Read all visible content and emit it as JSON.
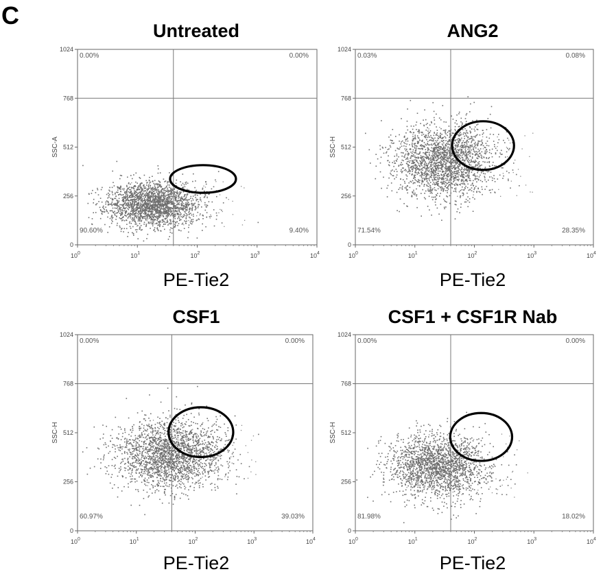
{
  "figure": {
    "panel_letter": "C"
  },
  "chart_data": [
    {
      "type": "scatter",
      "title": "Untreated",
      "xlabel": "PE-Tie2",
      "ylabel": "SSC-A",
      "x_scale": "log",
      "xlim": [
        1,
        10000
      ],
      "ylim": [
        0,
        1024
      ],
      "x_ticks": [
        1,
        10,
        100,
        1000,
        10000
      ],
      "y_ticks": [
        0,
        256,
        512,
        768,
        1024
      ],
      "gate": {
        "x": 40,
        "y": 768
      },
      "quadrants": {
        "upper_left": "0.00%",
        "upper_right": "0.00%",
        "lower_left": "90.60%",
        "lower_right": "9.40%"
      },
      "cloud": {
        "center_x": 18,
        "center_y": 215,
        "spread_log_x": 0.38,
        "spread_y": 60,
        "n": 2200,
        "seed": 11
      },
      "ellipse": {
        "center_x": 125,
        "center_y": 345,
        "rx_log": 0.55,
        "ry": 145
      }
    },
    {
      "type": "scatter",
      "title": "ANG2",
      "xlabel": "PE-Tie2",
      "ylabel": "SSC-H",
      "x_scale": "log",
      "xlim": [
        1,
        10000
      ],
      "ylim": [
        0,
        1024
      ],
      "x_ticks": [
        1,
        10,
        100,
        1000,
        10000
      ],
      "y_ticks": [
        0,
        256,
        512,
        768,
        1024
      ],
      "gate": {
        "x": 40,
        "y": 768
      },
      "quadrants": {
        "upper_left": "0.03%",
        "upper_right": "0.08%",
        "lower_left": "71.54%",
        "lower_right": "28.35%"
      },
      "cloud": {
        "center_x": 30,
        "center_y": 440,
        "spread_log_x": 0.42,
        "spread_y": 95,
        "n": 2200,
        "seed": 23
      },
      "ellipse": {
        "center_x": 140,
        "center_y": 520,
        "rx_log": 0.52,
        "ry": 255
      }
    },
    {
      "type": "scatter",
      "title": "CSF1",
      "xlabel": "PE-Tie2",
      "ylabel": "SSC-H",
      "x_scale": "log",
      "xlim": [
        1,
        10000
      ],
      "ylim": [
        0,
        1024
      ],
      "x_ticks": [
        1,
        10,
        100,
        1000,
        10000
      ],
      "y_ticks": [
        0,
        256,
        512,
        768,
        1024
      ],
      "gate": {
        "x": 40,
        "y": 768
      },
      "quadrants": {
        "upper_left": "0.00%",
        "upper_right": "0.00%",
        "lower_left": "60.97%",
        "lower_right": "39.03%"
      },
      "cloud": {
        "center_x": 35,
        "center_y": 400,
        "spread_log_x": 0.45,
        "spread_y": 90,
        "n": 2200,
        "seed": 37
      },
      "ellipse": {
        "center_x": 125,
        "center_y": 515,
        "rx_log": 0.55,
        "ry": 260
      }
    },
    {
      "type": "scatter",
      "title": "CSF1 + CSF1R Nab",
      "xlabel": "PE-Tie2",
      "ylabel": "SSC-H",
      "x_scale": "log",
      "xlim": [
        1,
        10000
      ],
      "ylim": [
        0,
        1024
      ],
      "x_ticks": [
        1,
        10,
        100,
        1000,
        10000
      ],
      "y_ticks": [
        0,
        256,
        512,
        768,
        1024
      ],
      "gate": {
        "x": 40,
        "y": 768
      },
      "quadrants": {
        "upper_left": "0.00%",
        "upper_right": "0.00%",
        "lower_left": "81.98%",
        "lower_right": "18.02%"
      },
      "cloud": {
        "center_x": 25,
        "center_y": 340,
        "spread_log_x": 0.42,
        "spread_y": 85,
        "n": 2000,
        "seed": 53
      },
      "ellipse": {
        "center_x": 130,
        "center_y": 490,
        "rx_log": 0.52,
        "ry": 250
      }
    }
  ]
}
